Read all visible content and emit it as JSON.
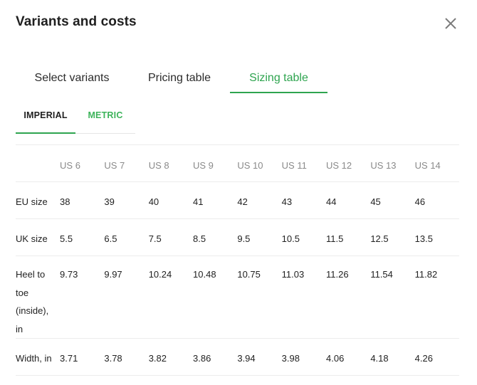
{
  "modal": {
    "title": "Variants and costs",
    "close_icon": "close-icon"
  },
  "tabs": [
    {
      "label": "Select variants",
      "active": false
    },
    {
      "label": "Pricing table",
      "active": false
    },
    {
      "label": "Sizing table",
      "active": true
    }
  ],
  "subtabs": [
    {
      "label": "IMPERIAL",
      "active": true
    },
    {
      "label": "METRIC",
      "active": false
    }
  ],
  "colors": {
    "accent": "#2ea44f",
    "muted_header": "#8a8a8a",
    "divider": "#ececec"
  },
  "table": {
    "columns": [
      "",
      "US 6",
      "US 7",
      "US 8",
      "US 9",
      "US 10",
      "US 11",
      "US 12",
      "US 13",
      "US 14"
    ],
    "rows": [
      {
        "label": "EU size",
        "values": [
          "38",
          "39",
          "40",
          "41",
          "42",
          "43",
          "44",
          "45",
          "46"
        ]
      },
      {
        "label": "UK size",
        "values": [
          "5.5",
          "6.5",
          "7.5",
          "8.5",
          "9.5",
          "10.5",
          "11.5",
          "12.5",
          "13.5"
        ]
      },
      {
        "label": "Heel to toe (inside), in",
        "values": [
          "9.73",
          "9.97",
          "10.24",
          "10.48",
          "10.75",
          "11.03",
          "11.26",
          "11.54",
          "11.82"
        ]
      },
      {
        "label": "Width, in",
        "values": [
          "3.71",
          "3.78",
          "3.82",
          "3.86",
          "3.94",
          "3.98",
          "4.06",
          "4.18",
          "4.26"
        ]
      }
    ]
  }
}
